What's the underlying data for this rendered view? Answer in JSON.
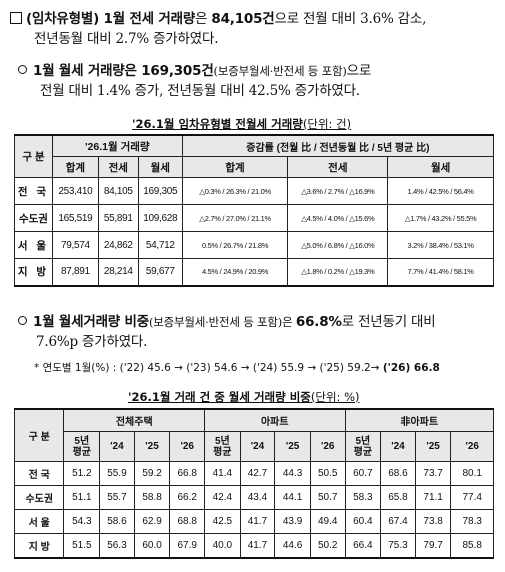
{
  "p1": {
    "lead": "(임차유형별) 1월 전세 거래량",
    "mid": "은 ",
    "value": "84,105건",
    "tail": "으로 전월 대비 3.6% 감소,",
    "line2": "전년동월 대비 2.7% 증가하였다."
  },
  "p2": {
    "lead": "1월 월세 거래량은 169,305건",
    "paren": "(보증부월세·반전세 등 포함)",
    "tail": "으로",
    "line2": "전월 대비 1.4% 증가, 전년동월 대비 42.5% 증가하였다."
  },
  "table1": {
    "caption": "'26.1월 임차유형별 전월세 거래량",
    "unit": "(단위: 건)",
    "col_region": "구 분",
    "group_vol": "'26.1월 거래량",
    "group_change": "증감률 (전월 比 / 전년동월 比 / 5년 평균 比)",
    "sub_total": "합계",
    "sub_jeonse": "전세",
    "sub_wolse": "월세",
    "sub_total2": "합계",
    "sub_jeonse2": "전세",
    "sub_wolse2": "월세",
    "rows": [
      {
        "region": "전 국",
        "total": "253,410",
        "jeonse": "84,105",
        "wolse": "169,305",
        "c_total": "△0.3% / 26.3% / 21.0%",
        "c_jeonse": "△3.6% / 2.7% / △16.9%",
        "c_wolse": "1.4% / 42.5% / 56.4%"
      },
      {
        "region": "수도권",
        "total": "165,519",
        "jeonse": "55,891",
        "wolse": "109,628",
        "c_total": "△2.7% / 27.0% / 21.1%",
        "c_jeonse": "△4.5% / 4.0% / △15.6%",
        "c_wolse": "△1.7% / 43.2% / 55.5%"
      },
      {
        "region": "서 울",
        "total": "79,574",
        "jeonse": "24,862",
        "wolse": "54,712",
        "c_total": "0.5% / 26.7% / 21.8%",
        "c_jeonse": "△5.0% / 6.8% / △16.0%",
        "c_wolse": "3.2% / 38.4% / 53.1%"
      },
      {
        "region": "지 방",
        "total": "87,891",
        "jeonse": "28,214",
        "wolse": "59,677",
        "c_total": "4.5% / 24.9% / 20.9%",
        "c_jeonse": "△1.8% / 0.2% / △19.3%",
        "c_wolse": "7.7% / 41.4% / 58.1%"
      }
    ]
  },
  "p3": {
    "lead": "1월 월세거래량 비중",
    "paren": "(보증부월세·반전세 등 포함)은 ",
    "value": "66.8%",
    "tail": "로 전년동기 대비",
    "line2": "7.6%p 증가하였다."
  },
  "note": {
    "text": "* 연도별 1월(%) : ('22) 45.6 → ('23) 54.6 → ('24) 55.9 → ('25) 59.2→ ",
    "bold": "('26) 66.8"
  },
  "table2": {
    "caption": "'26.1월 거래 건 중 월세 거래량 비중",
    "unit": "(단위: %)",
    "col_region": "구 분",
    "groups": [
      "전체주택",
      "아파트",
      "非아파트"
    ],
    "years": [
      "5년\n평균",
      "'24",
      "'25",
      "'26"
    ],
    "rows": [
      {
        "region": "전 국",
        "v": [
          "51.2",
          "55.9",
          "59.2",
          "66.8",
          "41.4",
          "42.7",
          "44.3",
          "50.5",
          "60.7",
          "68.6",
          "73.7",
          "80.1"
        ]
      },
      {
        "region": "수도권",
        "v": [
          "51.1",
          "55.7",
          "58.8",
          "66.2",
          "42.4",
          "43.4",
          "44.1",
          "50.7",
          "58.3",
          "65.8",
          "71.1",
          "77.4"
        ]
      },
      {
        "region": "서 울",
        "v": [
          "54.3",
          "58.6",
          "62.9",
          "68.8",
          "42.5",
          "41.7",
          "43.9",
          "49.4",
          "60.4",
          "67.4",
          "73.8",
          "78.3"
        ]
      },
      {
        "region": "지 방",
        "v": [
          "51.5",
          "56.3",
          "60.0",
          "67.9",
          "40.0",
          "41.7",
          "44.6",
          "50.2",
          "66.4",
          "75.3",
          "79.7",
          "85.8"
        ]
      }
    ]
  }
}
